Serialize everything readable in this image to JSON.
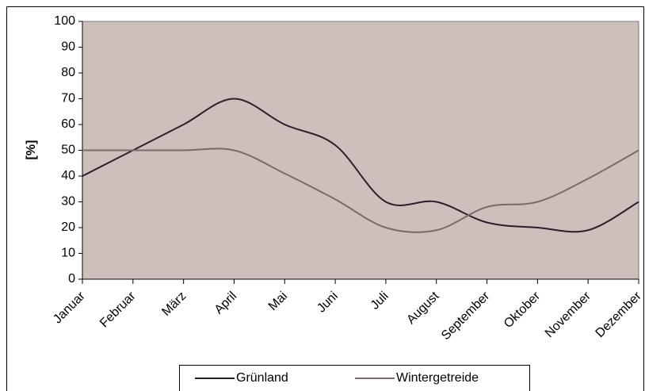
{
  "chart_data": {
    "type": "line",
    "y_label": "[%]",
    "categories": [
      "Januar",
      "Februar",
      "März",
      "April",
      "Mai",
      "Juni",
      "Juli",
      "August",
      "September",
      "Oktober",
      "November",
      "Dezember"
    ],
    "series": [
      {
        "name": "Grünland",
        "color": "#2b1f2a",
        "values": [
          40,
          50,
          60,
          70,
          60,
          52,
          30,
          30,
          22,
          20,
          19,
          30
        ]
      },
      {
        "name": "Wintergetreide",
        "color": "#7a6a68",
        "values": [
          50,
          50,
          50,
          50,
          41,
          31,
          20,
          19,
          28,
          30,
          39,
          50
        ]
      }
    ],
    "ylim": [
      0,
      100
    ],
    "yticks": [
      0,
      10,
      20,
      30,
      40,
      50,
      60,
      70,
      80,
      90,
      100
    ],
    "smooth": true,
    "plot_color": "#cdc0bc"
  }
}
